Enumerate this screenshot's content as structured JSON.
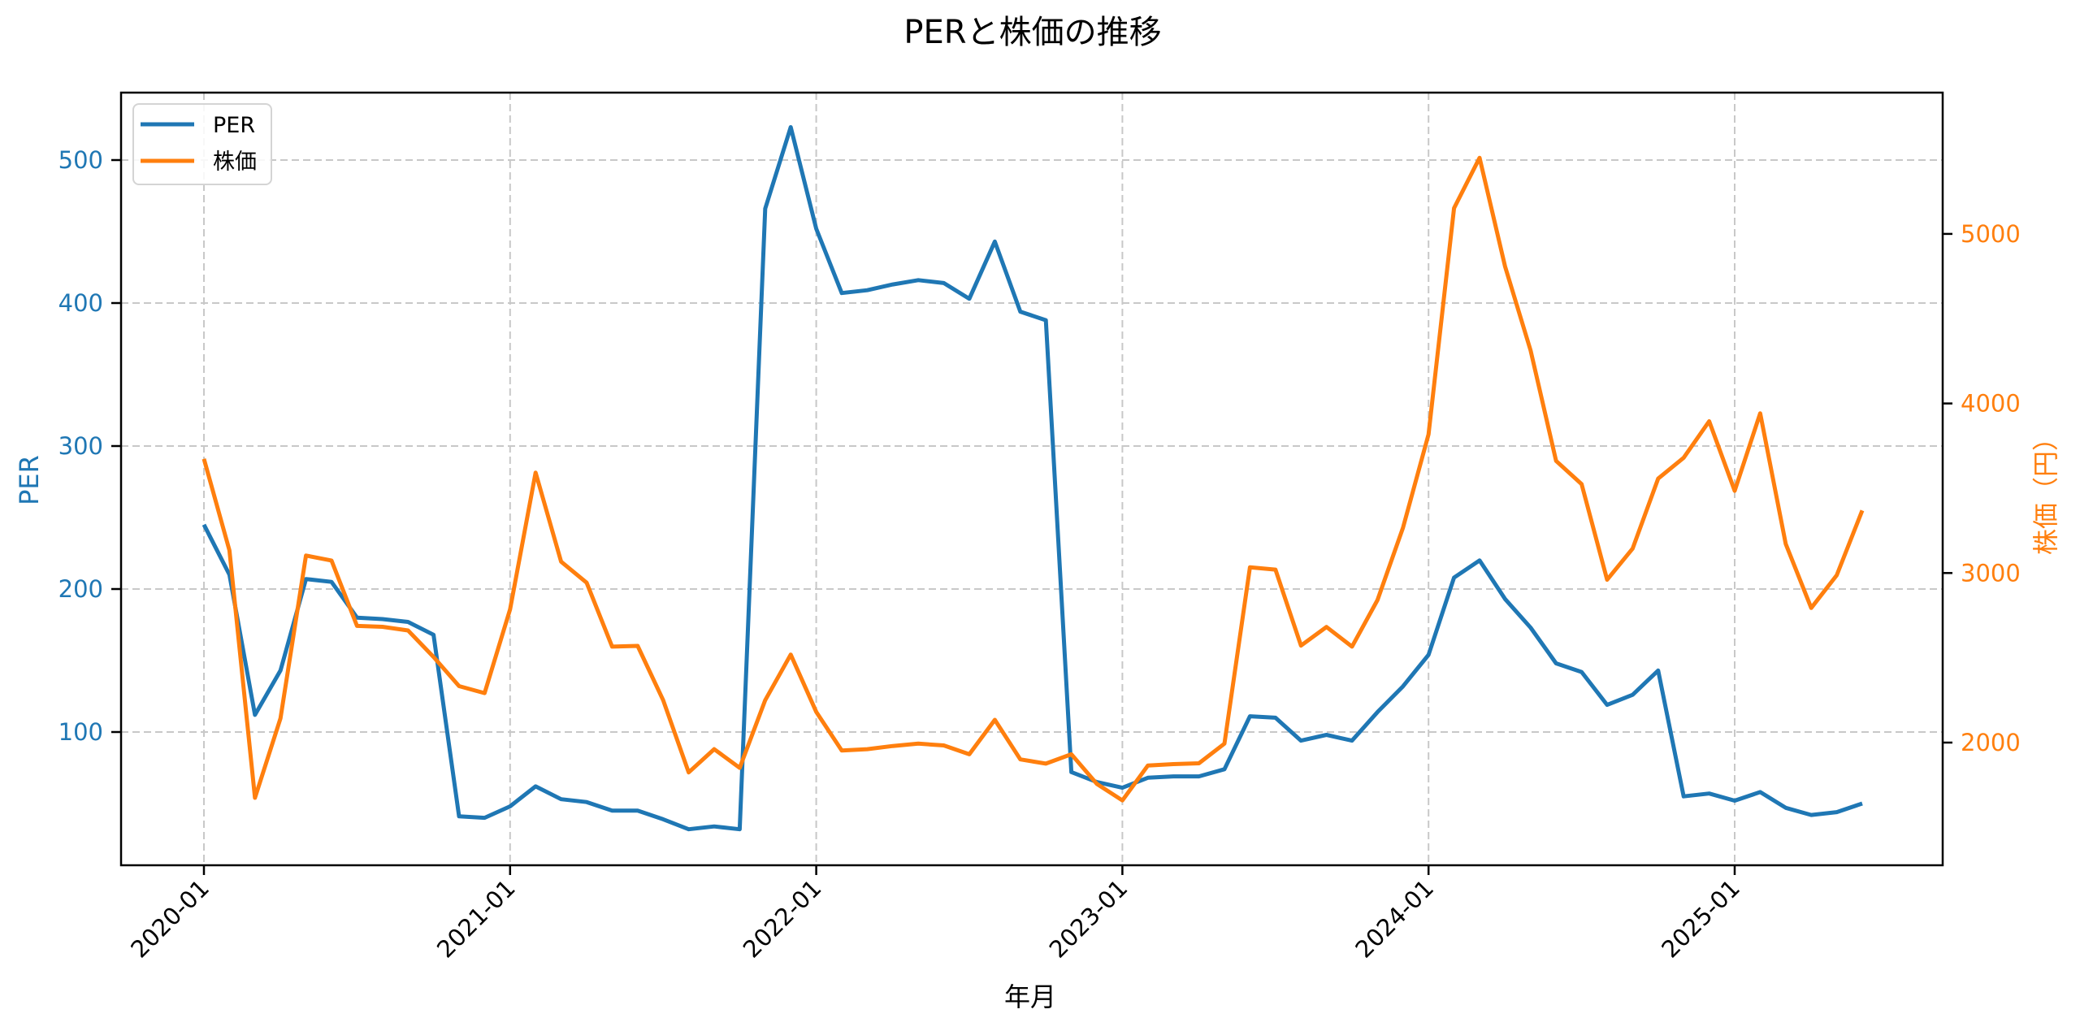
{
  "title": "PERと株価の推移",
  "colors": {
    "per": "#1f77b4",
    "price": "#ff7f0e",
    "grid": "#c8c8c8",
    "axis": "#000000"
  },
  "legend": {
    "items": [
      {
        "label": "PER",
        "color": "#1f77b4"
      },
      {
        "label": "株価",
        "color": "#ff7f0e"
      }
    ]
  },
  "axes": {
    "x_label": "年月",
    "y_left_label": "PER",
    "y_right_label": "株価（円）",
    "x_ticks": [
      "2020-01",
      "2021-01",
      "2022-01",
      "2023-01",
      "2024-01",
      "2025-01"
    ],
    "y_left_ticks": [
      "100",
      "200",
      "300",
      "400",
      "500"
    ],
    "y_right_ticks": [
      "2000",
      "3000",
      "4000",
      "5000"
    ]
  },
  "chart_data": {
    "type": "line",
    "title": "PERと株価の推移",
    "xlabel": "年月",
    "ylabel": "PER",
    "ylabel_right": "株価（円）",
    "grid": true,
    "legend_position": "upper left",
    "ylim": [
      6,
      548
    ],
    "ylim_right": [
      1272,
      5838
    ],
    "x": [
      "2020-01",
      "2020-02",
      "2020-03",
      "2020-04",
      "2020-05",
      "2020-06",
      "2020-07",
      "2020-08",
      "2020-09",
      "2020-10",
      "2020-11",
      "2020-12",
      "2021-01",
      "2021-02",
      "2021-03",
      "2021-04",
      "2021-05",
      "2021-06",
      "2021-07",
      "2021-08",
      "2021-09",
      "2021-10",
      "2021-11",
      "2021-12",
      "2022-01",
      "2022-02",
      "2022-03",
      "2022-04",
      "2022-05",
      "2022-06",
      "2022-07",
      "2022-08",
      "2022-09",
      "2022-10",
      "2022-11",
      "2022-12",
      "2023-01",
      "2023-02",
      "2023-03",
      "2023-04",
      "2023-05",
      "2023-06",
      "2023-07",
      "2023-08",
      "2023-09",
      "2023-10",
      "2023-11",
      "2023-12",
      "2024-01",
      "2024-02",
      "2024-03",
      "2024-04",
      "2024-05",
      "2024-06",
      "2024-07",
      "2024-08",
      "2024-09",
      "2024-10",
      "2024-11",
      "2024-12",
      "2025-01",
      "2025-02",
      "2025-03",
      "2025-04",
      "2025-05",
      "2025-06"
    ],
    "series": [
      {
        "name": "PER",
        "axis": "left",
        "color": "#1f77b4",
        "values": [
          245,
          210,
          112,
          143,
          207,
          205,
          180,
          179,
          177,
          168,
          41,
          40,
          48,
          62,
          53,
          51,
          45,
          45,
          39,
          32,
          34,
          32,
          466,
          523,
          452,
          407,
          409,
          413,
          416,
          414,
          403,
          443,
          394,
          388,
          72,
          65,
          61,
          68,
          69,
          69,
          74,
          111,
          110,
          94,
          98,
          94,
          114,
          132,
          154,
          208,
          220,
          193,
          173,
          148,
          142,
          119,
          126,
          143,
          55,
          57,
          52,
          58,
          47,
          42,
          44,
          50
        ]
      },
      {
        "name": "株価",
        "axis": "right",
        "color": "#ff7f0e",
        "values": [
          3673,
          3133,
          1674,
          2143,
          3103,
          3074,
          2688,
          2683,
          2661,
          2505,
          2333,
          2292,
          2786,
          3592,
          3067,
          2943,
          2566,
          2570,
          2250,
          1824,
          1961,
          1851,
          2250,
          2519,
          2181,
          1953,
          1961,
          1980,
          1994,
          1983,
          1931,
          2134,
          1901,
          1876,
          1931,
          1756,
          1659,
          1865,
          1873,
          1878,
          1994,
          3034,
          3020,
          2572,
          2682,
          2566,
          2841,
          3268,
          3818,
          5152,
          5449,
          4808,
          4313,
          3661,
          3524,
          2960,
          3144,
          3557,
          3680,
          3895,
          3485,
          3942,
          3172,
          2794,
          2987,
          3369
        ]
      }
    ]
  }
}
